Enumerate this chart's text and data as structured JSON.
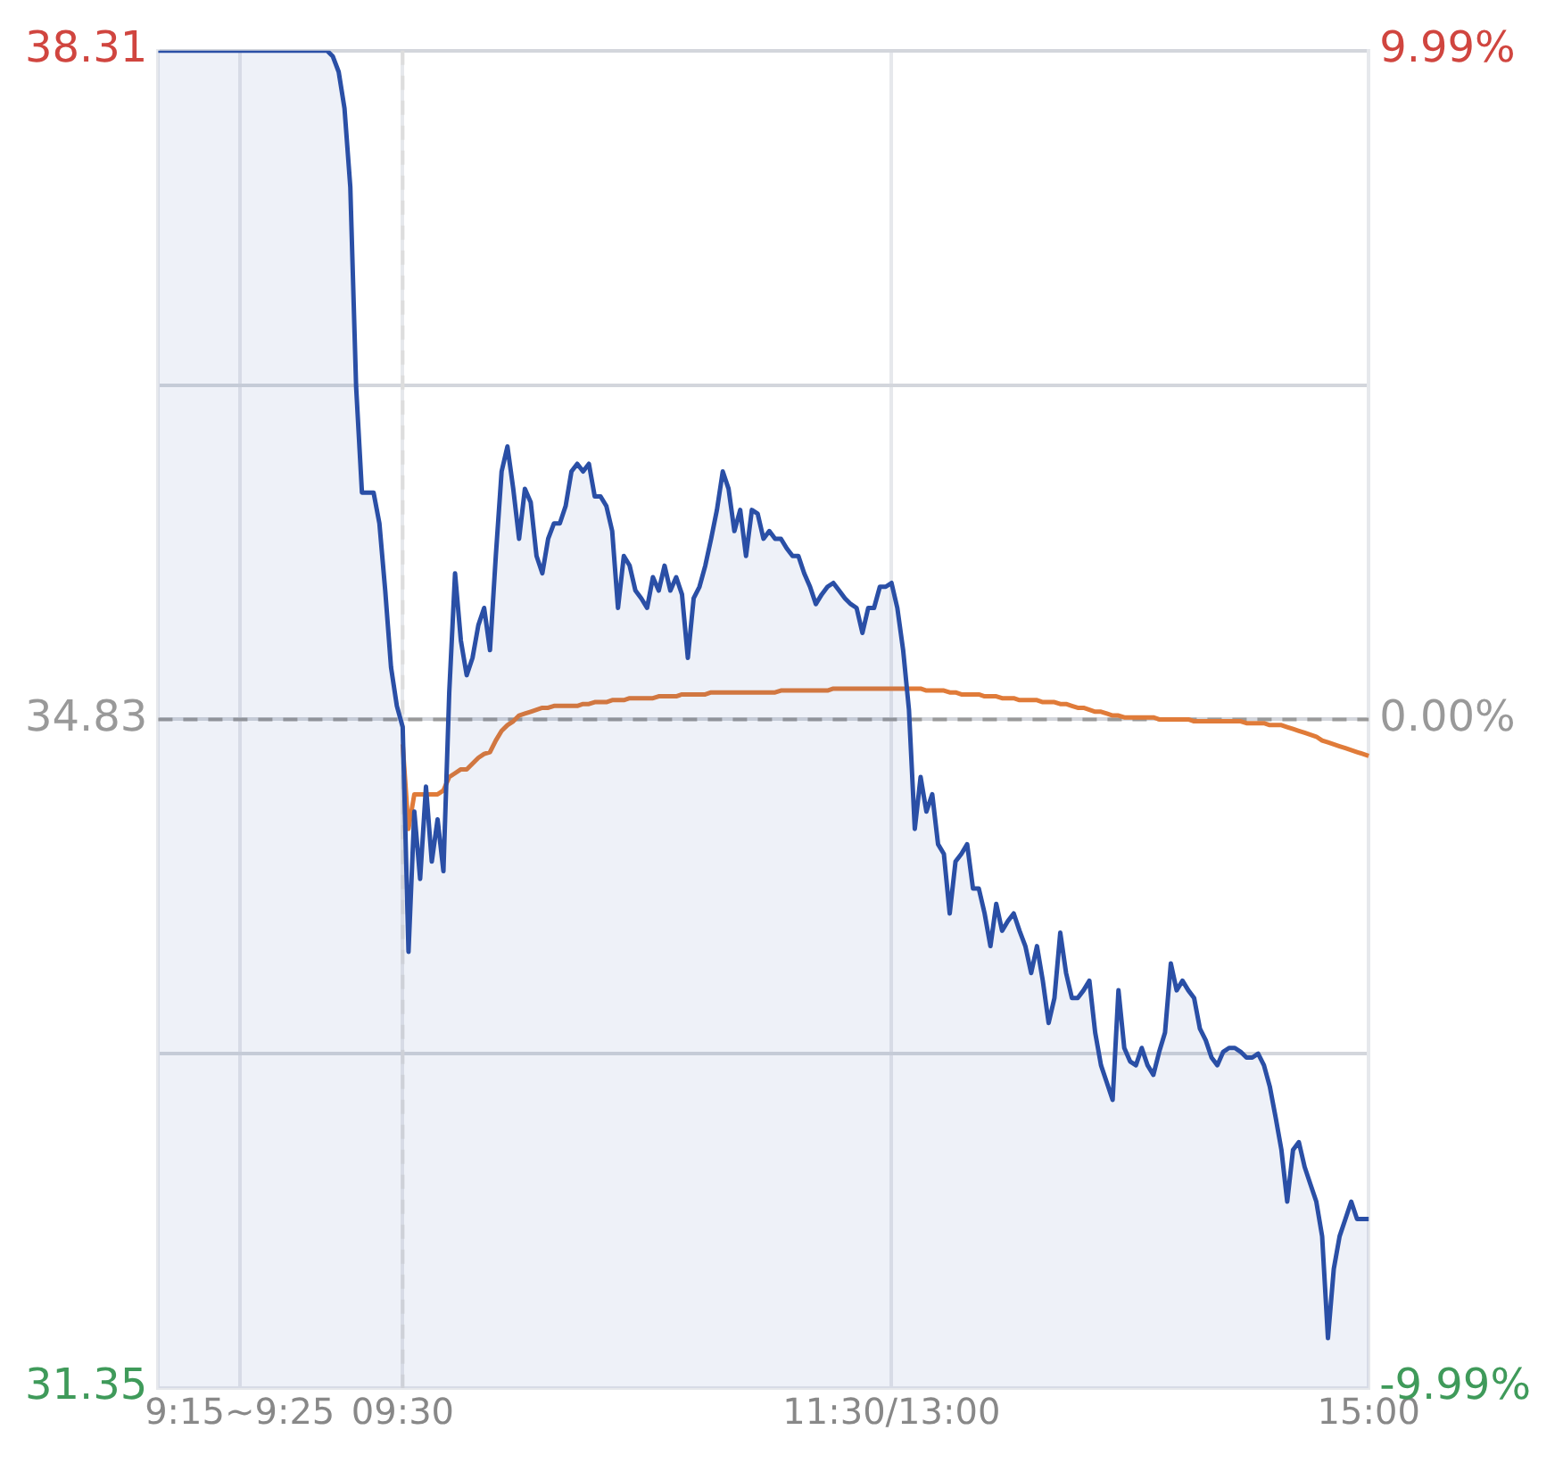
{
  "chart_data": {
    "type": "line",
    "categories": [
      null,
      null,
      null,
      null,
      null,
      null,
      null,
      null,
      null,
      null,
      null,
      null,
      null,
      null,
      "9:15~9:25",
      null,
      null,
      null,
      null,
      null,
      null,
      null,
      null,
      null,
      null,
      null,
      null,
      null,
      null,
      null,
      null,
      null,
      null,
      null,
      null,
      null,
      null,
      null,
      null,
      null,
      null,
      null,
      "09:30",
      null,
      null,
      null,
      null,
      null,
      null,
      null,
      null,
      null,
      null,
      null,
      null,
      null,
      null,
      null,
      null,
      null,
      null,
      null,
      null,
      null,
      null,
      null,
      null,
      null,
      null,
      null,
      null,
      null,
      null,
      null,
      null,
      null,
      null,
      null,
      null,
      null,
      null,
      null,
      null,
      null,
      null,
      null,
      null,
      null,
      null,
      null,
      null,
      null,
      null,
      null,
      null,
      null,
      null,
      null,
      null,
      null,
      null,
      null,
      null,
      null,
      null,
      null,
      null,
      null,
      null,
      null,
      null,
      null,
      null,
      null,
      null,
      null,
      null,
      null,
      null,
      null,
      null,
      null,
      null,
      null,
      null,
      null,
      "11:30/13:00",
      null,
      null,
      null,
      null,
      null,
      null,
      null,
      null,
      null,
      null,
      null,
      null,
      null,
      null,
      null,
      null,
      null,
      null,
      null,
      null,
      null,
      null,
      null,
      null,
      null,
      null,
      null,
      null,
      null,
      null,
      null,
      null,
      null,
      null,
      null,
      null,
      null,
      null,
      null,
      null,
      null,
      null,
      null,
      null,
      null,
      null,
      null,
      null,
      null,
      null,
      null,
      null,
      null,
      null,
      null,
      null,
      null,
      null,
      null,
      null,
      null,
      null,
      null,
      null,
      null,
      null,
      null,
      null,
      null,
      null,
      null,
      null,
      null,
      null,
      null,
      null,
      null,
      null,
      null,
      null,
      null,
      "15:00"
    ],
    "ylim": [
      31.35,
      38.31
    ],
    "yticks": [
      31.35,
      {
        "value": 33.09,
        "label": null
      },
      34.83,
      {
        "value": 36.57,
        "label": null
      },
      38.31
    ],
    "y2lim": [
      -9.99,
      9.99
    ],
    "y2ticks": [
      {
        "value": -9.99,
        "label": "-9.99%"
      },
      {
        "value": 0,
        "label": "0.00%"
      },
      {
        "value": 9.99,
        "label": "9.99%"
      }
    ],
    "grid": true,
    "ref_lines": [
      {
        "axis": "y",
        "value": 34.83,
        "color": "#999999",
        "line_style": "dashed"
      },
      {
        "axis": "x",
        "value": "09:30",
        "color": "#dddddd",
        "line_style": "dashed"
      }
    ],
    "series": [
      {
        "type": "area",
        "color": "#2a4fa6",
        "values": [
          38.31,
          38.31,
          38.31,
          38.31,
          38.31,
          38.31,
          38.31,
          38.31,
          38.31,
          38.31,
          38.31,
          38.31,
          38.31,
          38.31,
          38.31,
          38.31,
          38.31,
          38.31,
          38.31,
          38.31,
          38.31,
          38.31,
          38.31,
          38.31,
          38.31,
          38.31,
          38.31,
          38.31,
          38.31,
          38.31,
          38.28,
          38.2,
          38.01,
          37.6,
          36.56,
          36.01,
          36.01,
          36.01,
          35.85,
          35.5,
          35.1,
          34.9,
          34.79,
          33.62,
          34.35,
          34.0,
          34.48,
          34.09,
          34.31,
          34.04,
          34.97,
          35.59,
          35.24,
          35.06,
          35.15,
          35.32,
          35.41,
          35.19,
          35.68,
          36.12,
          36.25,
          36.03,
          35.77,
          36.03,
          35.96,
          35.68,
          35.59,
          35.77,
          35.85,
          35.85,
          35.94,
          36.12,
          36.16,
          36.12,
          36.16,
          35.99,
          35.99,
          35.94,
          35.81,
          35.41,
          35.68,
          35.63,
          35.5,
          35.46,
          35.41,
          35.57,
          35.5,
          35.63,
          35.5,
          35.57,
          35.48,
          35.15,
          35.46,
          35.52,
          35.63,
          35.77,
          35.92,
          36.12,
          36.03,
          35.81,
          35.92,
          35.68,
          35.92,
          35.9,
          35.77,
          35.81,
          35.77,
          35.77,
          35.72,
          35.68,
          35.68,
          35.59,
          35.52,
          35.43,
          35.48,
          35.52,
          35.54,
          35.5,
          35.46,
          35.43,
          35.41,
          35.28,
          35.41,
          35.41,
          35.52,
          35.52,
          35.54,
          35.41,
          35.19,
          34.88,
          34.26,
          34.53,
          34.35,
          34.44,
          34.18,
          34.13,
          33.82,
          34.09,
          34.13,
          34.18,
          33.95,
          33.95,
          33.82,
          33.65,
          33.87,
          33.73,
          33.78,
          33.82,
          33.73,
          33.65,
          33.51,
          33.65,
          33.47,
          33.25,
          33.38,
          33.72,
          33.51,
          33.38,
          33.38,
          33.42,
          33.47,
          33.2,
          33.03,
          32.94,
          32.85,
          33.42,
          33.12,
          33.05,
          33.03,
          33.12,
          33.03,
          32.98,
          33.1,
          33.2,
          33.56,
          33.42,
          33.47,
          33.42,
          33.38,
          33.22,
          33.16,
          33.07,
          33.03,
          33.1,
          33.12,
          33.12,
          33.1,
          33.07,
          33.07,
          33.09,
          33.03,
          32.92,
          32.76,
          32.59,
          32.32,
          32.59,
          32.63,
          32.5,
          32.41,
          32.32,
          32.14,
          31.61,
          31.97,
          32.14,
          32.23,
          32.32,
          32.23,
          32.23,
          32.23
        ]
      },
      {
        "type": "line",
        "color": "#e07b39",
        "values": [
          null,
          null,
          null,
          null,
          null,
          null,
          null,
          null,
          null,
          null,
          null,
          null,
          null,
          null,
          null,
          null,
          null,
          null,
          null,
          null,
          null,
          null,
          null,
          null,
          null,
          null,
          null,
          null,
          null,
          null,
          null,
          null,
          null,
          null,
          null,
          null,
          null,
          null,
          null,
          null,
          null,
          null,
          34.7,
          34.26,
          34.44,
          34.44,
          34.44,
          34.44,
          34.44,
          34.46,
          34.53,
          34.55,
          34.57,
          34.57,
          34.6,
          34.63,
          34.65,
          34.66,
          34.72,
          34.77,
          34.8,
          34.82,
          34.85,
          34.86,
          34.87,
          34.88,
          34.89,
          34.89,
          34.9,
          34.9,
          34.9,
          34.9,
          34.9,
          34.91,
          34.91,
          34.92,
          34.92,
          34.92,
          34.93,
          34.93,
          34.93,
          34.94,
          34.94,
          34.94,
          34.94,
          34.94,
          34.95,
          34.95,
          34.95,
          34.95,
          34.96,
          34.96,
          34.96,
          34.96,
          34.96,
          34.97,
          34.97,
          34.97,
          34.97,
          34.97,
          34.97,
          34.97,
          34.97,
          34.97,
          34.97,
          34.97,
          34.97,
          34.98,
          34.98,
          34.98,
          34.98,
          34.98,
          34.98,
          34.98,
          34.98,
          34.98,
          34.99,
          34.99,
          34.99,
          34.99,
          34.99,
          34.99,
          34.99,
          34.99,
          34.99,
          34.99,
          34.99,
          34.99,
          34.99,
          34.99,
          34.99,
          34.99,
          34.98,
          34.98,
          34.98,
          34.98,
          34.97,
          34.97,
          34.96,
          34.96,
          34.96,
          34.96,
          34.95,
          34.95,
          34.95,
          34.94,
          34.94,
          34.94,
          34.93,
          34.93,
          34.93,
          34.93,
          34.92,
          34.92,
          34.92,
          34.91,
          34.91,
          34.9,
          34.89,
          34.89,
          34.88,
          34.87,
          34.87,
          34.86,
          34.85,
          34.85,
          34.84,
          34.84,
          34.84,
          34.84,
          34.84,
          34.84,
          34.83,
          34.83,
          34.83,
          34.83,
          34.83,
          34.83,
          34.82,
          34.82,
          34.82,
          34.82,
          34.82,
          34.82,
          34.82,
          34.82,
          34.82,
          34.81,
          34.81,
          34.81,
          34.81,
          34.8,
          34.8,
          34.8,
          34.79,
          34.78,
          34.77,
          34.76,
          34.75,
          34.74,
          34.72,
          34.71,
          34.7,
          34.69,
          34.68,
          34.67,
          34.66,
          34.65,
          34.64
        ]
      }
    ]
  }
}
